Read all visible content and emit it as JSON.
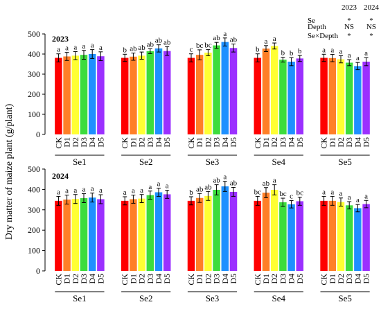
{
  "ylabel": "Dry matter of maize plant (g/plant)",
  "stats_table": {
    "years": [
      "2023",
      "2024"
    ],
    "rows": [
      {
        "factor": "Se",
        "values": [
          "*",
          "*"
        ]
      },
      {
        "factor": "Depth",
        "values": [
          "NS",
          "NS"
        ]
      },
      {
        "factor": "Se×Depth",
        "values": [
          "*",
          "*"
        ]
      }
    ]
  },
  "colors": [
    "#ff0000",
    "#ff7f27",
    "#ffff33",
    "#3ddc3d",
    "#1e90ff",
    "#9b30ff"
  ],
  "chart_data": [
    {
      "type": "bar",
      "title": "2023",
      "ylim": [
        0,
        500
      ],
      "yticks": [
        0,
        100,
        200,
        300,
        400,
        500
      ],
      "categories": [
        "CK",
        "D1",
        "D2",
        "D3",
        "D4",
        "D5"
      ],
      "groups": [
        {
          "name": "Se1",
          "values": [
            381,
            388,
            392,
            396,
            400,
            389
          ],
          "errors": [
            20,
            20,
            20,
            22,
            22,
            22
          ],
          "letters": [
            "a",
            "a",
            "a",
            "a",
            "a",
            "a"
          ]
        },
        {
          "name": "Se2",
          "values": [
            381,
            387,
            392,
            414,
            428,
            415
          ],
          "errors": [
            18,
            18,
            18,
            12,
            18,
            22
          ],
          "letters": [
            "b",
            "ab",
            "ab",
            "ab",
            "ab",
            "ab"
          ]
        },
        {
          "name": "Se3",
          "values": [
            381,
            396,
            407,
            443,
            460,
            430
          ],
          "errors": [
            20,
            25,
            15,
            15,
            20,
            20
          ],
          "letters": [
            "c",
            "bc",
            "bc",
            "ab",
            "a",
            "ab"
          ]
        },
        {
          "name": "Se4",
          "values": [
            381,
            427,
            440,
            372,
            362,
            378
          ],
          "errors": [
            20,
            15,
            15,
            12,
            20,
            15
          ],
          "letters": [
            "b",
            "a",
            "a",
            "b",
            "b",
            "b"
          ]
        },
        {
          "name": "Se5",
          "values": [
            381,
            380,
            374,
            357,
            340,
            362
          ],
          "errors": [
            18,
            18,
            18,
            15,
            18,
            20
          ],
          "letters": [
            "a",
            "a",
            "a",
            "a",
            "a",
            "a"
          ]
        }
      ]
    },
    {
      "type": "bar",
      "title": "2024",
      "ylim": [
        0,
        500
      ],
      "yticks": [
        0,
        100,
        200,
        300,
        400,
        500
      ],
      "categories": [
        "CK",
        "D1",
        "D2",
        "D3",
        "D4",
        "D5"
      ],
      "groups": [
        {
          "name": "Se1",
          "values": [
            344,
            350,
            353,
            357,
            360,
            352
          ],
          "errors": [
            22,
            22,
            22,
            22,
            22,
            22
          ],
          "letters": [
            "a",
            "a",
            "a",
            "a",
            "a",
            "a"
          ]
        },
        {
          "name": "Se2",
          "values": [
            344,
            352,
            355,
            372,
            386,
            376
          ],
          "errors": [
            20,
            20,
            20,
            20,
            20,
            20
          ],
          "letters": [
            "a",
            "a",
            "a",
            "a",
            "a",
            "a"
          ]
        },
        {
          "name": "Se3",
          "values": [
            344,
            358,
            368,
            398,
            415,
            388
          ],
          "errors": [
            20,
            22,
            22,
            25,
            25,
            22
          ],
          "letters": [
            "b",
            "ab",
            "ab",
            "ab",
            "a",
            "ab"
          ]
        },
        {
          "name": "Se4",
          "values": [
            344,
            384,
            398,
            337,
            327,
            342
          ],
          "errors": [
            22,
            25,
            25,
            20,
            18,
            20
          ],
          "letters": [
            "bc",
            "ab",
            "a",
            "bc",
            "c",
            "bc"
          ]
        },
        {
          "name": "Se5",
          "values": [
            344,
            344,
            338,
            322,
            308,
            328
          ],
          "errors": [
            22,
            22,
            20,
            18,
            18,
            18
          ],
          "letters": [
            "a",
            "a",
            "a",
            "a",
            "a",
            "a"
          ]
        }
      ]
    }
  ]
}
